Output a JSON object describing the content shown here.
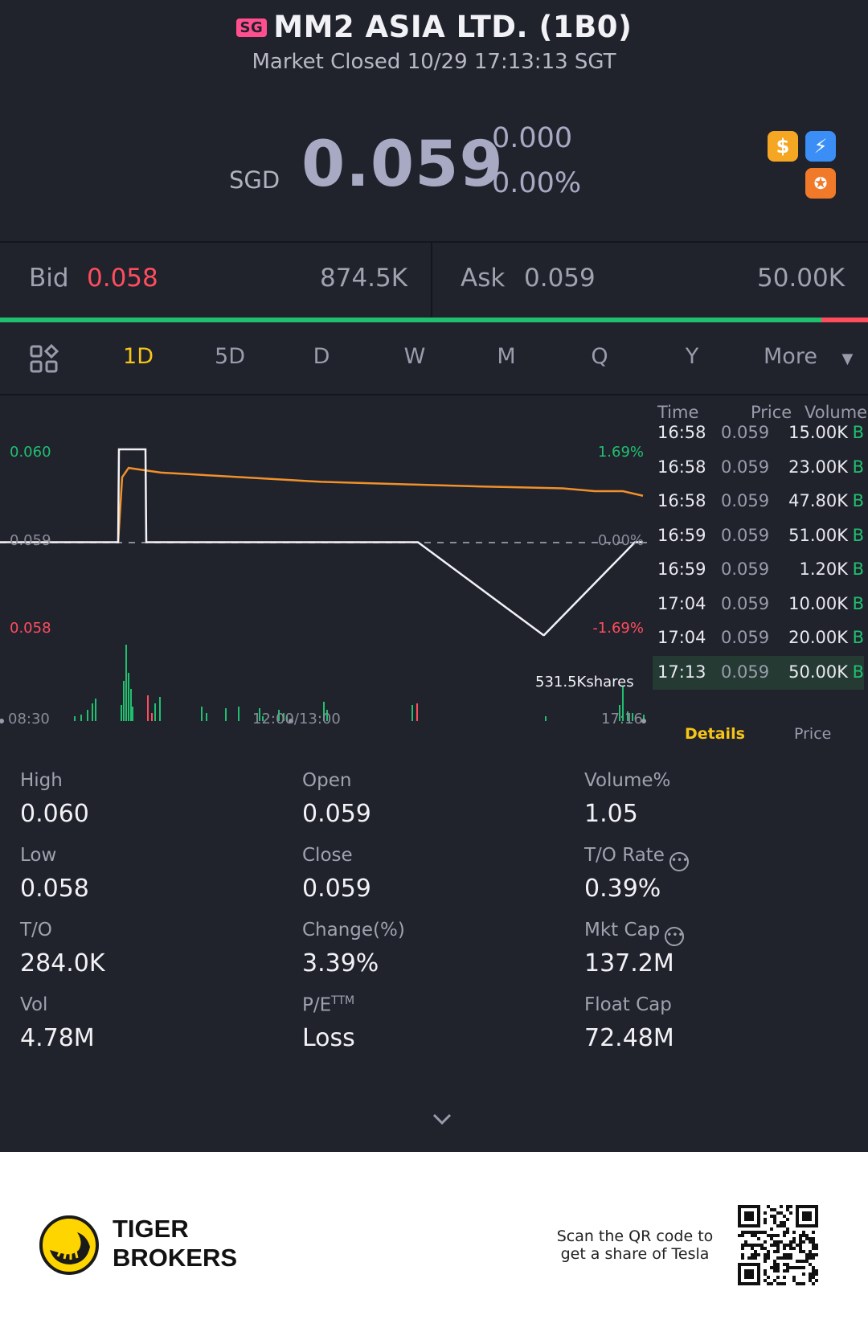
{
  "header": {
    "market_badge": "SG",
    "title": "MM2 ASIA LTD. (1B0)",
    "status": "Market Closed 10/29 17:13:13 SGT",
    "currency": "SGD",
    "price": "0.059",
    "change": "0.000",
    "change_pct": "0.00%",
    "icons": [
      "dollar-icon",
      "lightning-icon",
      "margin-icon"
    ]
  },
  "quote": {
    "bid_label": "Bid",
    "bid_price": "0.058",
    "bid_size": "874.5K",
    "ask_label": "Ask",
    "ask_price": "0.059",
    "ask_size": "50.00K",
    "bid_fraction": 0.946,
    "colors": {
      "bid": "#ff4d5e",
      "up": "#20c070",
      "accent": "#f5c518",
      "avg_line": "#f0912a"
    }
  },
  "tabs": {
    "items": [
      "1D",
      "5D",
      "D",
      "W",
      "M",
      "Q",
      "Y",
      "More"
    ],
    "active": "1D"
  },
  "chart_data": {
    "type": "line",
    "x_start": "08:30",
    "x_mid": "12:00/13:00",
    "x_end": "17:16",
    "y_ticks_left": [
      "0.060",
      "0.059",
      "0.058"
    ],
    "y_ticks_right": [
      "1.69%",
      "0.00%",
      "-1.69%"
    ],
    "ylim": [
      0.058,
      0.06
    ],
    "volume_label": "531.5Kshares",
    "series": [
      {
        "values": [
          0.059,
          0.059,
          0.06,
          0.06,
          0.059,
          0.059,
          0.059,
          0.058,
          0.058,
          0.059,
          0.059,
          0.059
        ]
      },
      {
        "values": [
          0.059,
          0.0598,
          0.05975,
          0.0597,
          0.05965,
          0.05962,
          0.0596,
          0.05958,
          0.05955,
          0.05955,
          0.05955,
          0.0595
        ]
      }
    ]
  },
  "trades": {
    "headers": {
      "time": "Time",
      "price": "Price",
      "volume": "Volume"
    },
    "rows": [
      {
        "time": "16:58",
        "price": "0.059",
        "volume": "15.00K",
        "side": "B"
      },
      {
        "time": "16:58",
        "price": "0.059",
        "volume": "23.00K",
        "side": "B"
      },
      {
        "time": "16:58",
        "price": "0.059",
        "volume": "47.80K",
        "side": "B"
      },
      {
        "time": "16:59",
        "price": "0.059",
        "volume": "51.00K",
        "side": "B"
      },
      {
        "time": "16:59",
        "price": "0.059",
        "volume": "1.20K",
        "side": "B"
      },
      {
        "time": "17:04",
        "price": "0.059",
        "volume": "10.00K",
        "side": "B"
      },
      {
        "time": "17:04",
        "price": "0.059",
        "volume": "20.00K",
        "side": "B"
      },
      {
        "time": "17:13",
        "price": "0.059",
        "volume": "50.00K",
        "side": "B"
      }
    ],
    "details_tab": "Details",
    "price_tab": "Price"
  },
  "stats": {
    "high_label": "High",
    "high": "0.060",
    "open_label": "Open",
    "open": "0.059",
    "volpct_label": "Volume%",
    "volpct": "1.05",
    "low_label": "Low",
    "low": "0.058",
    "close_label": "Close",
    "close": "0.059",
    "tor_label": "T/O Rate",
    "tor": "0.39%",
    "to_label": "T/O",
    "to": "284.0K",
    "change_label": "Change(%)",
    "change": "3.39%",
    "mktcap_label": "Mkt Cap",
    "mktcap": "137.2M",
    "vol_label": "Vol",
    "vol": "4.78M",
    "pe_label": "P/E",
    "pe_sup": "TTM",
    "pe": "Loss",
    "floatcap_label": "Float Cap",
    "floatcap": "72.48M"
  },
  "footer": {
    "brand_line1": "TIGER",
    "brand_line2": "BROKERS",
    "promo_line1": "Scan the QR code to",
    "promo_line2": "get a share of Tesla"
  }
}
